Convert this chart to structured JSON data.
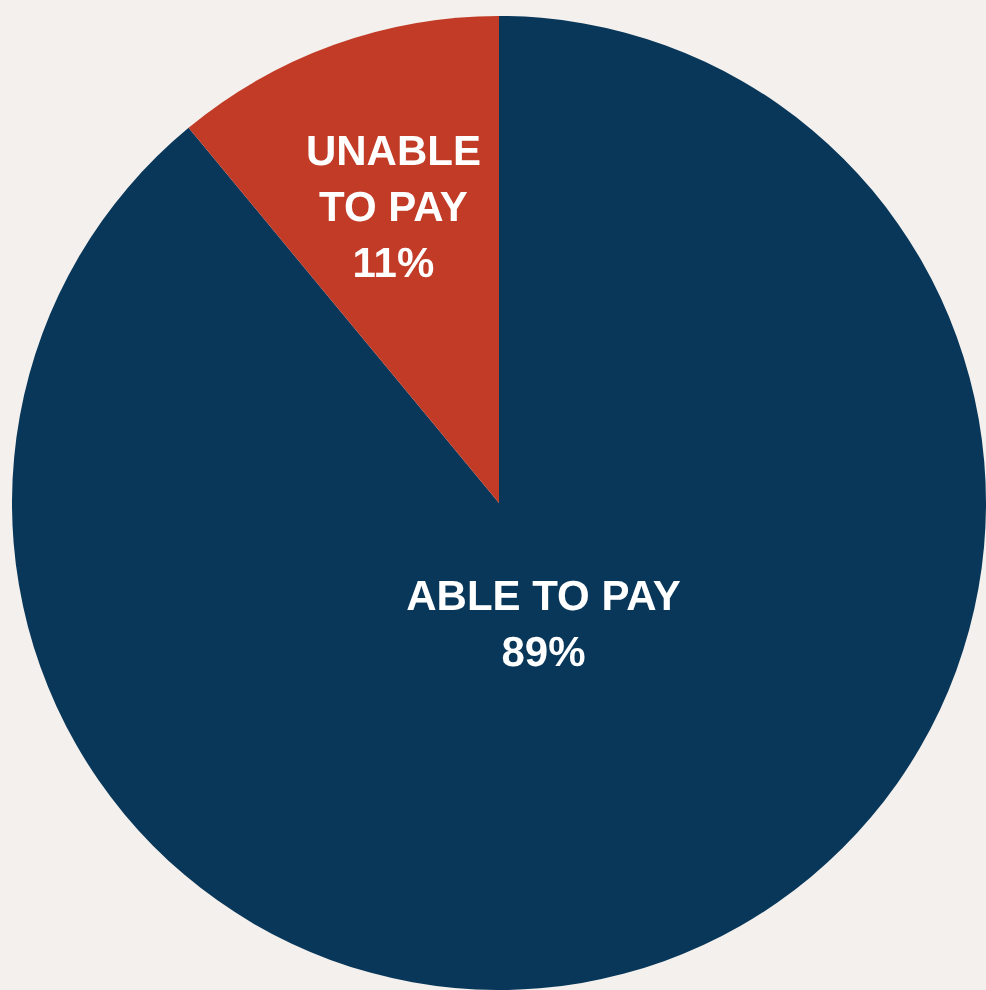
{
  "chart_data": {
    "type": "pie",
    "categories": [
      "ABLE TO PAY",
      "UNABLE TO PAY"
    ],
    "values": [
      89,
      11
    ],
    "value_labels": [
      "89%",
      "11%"
    ],
    "colors": [
      "#08375a",
      "#c13b27"
    ],
    "legend": false
  }
}
